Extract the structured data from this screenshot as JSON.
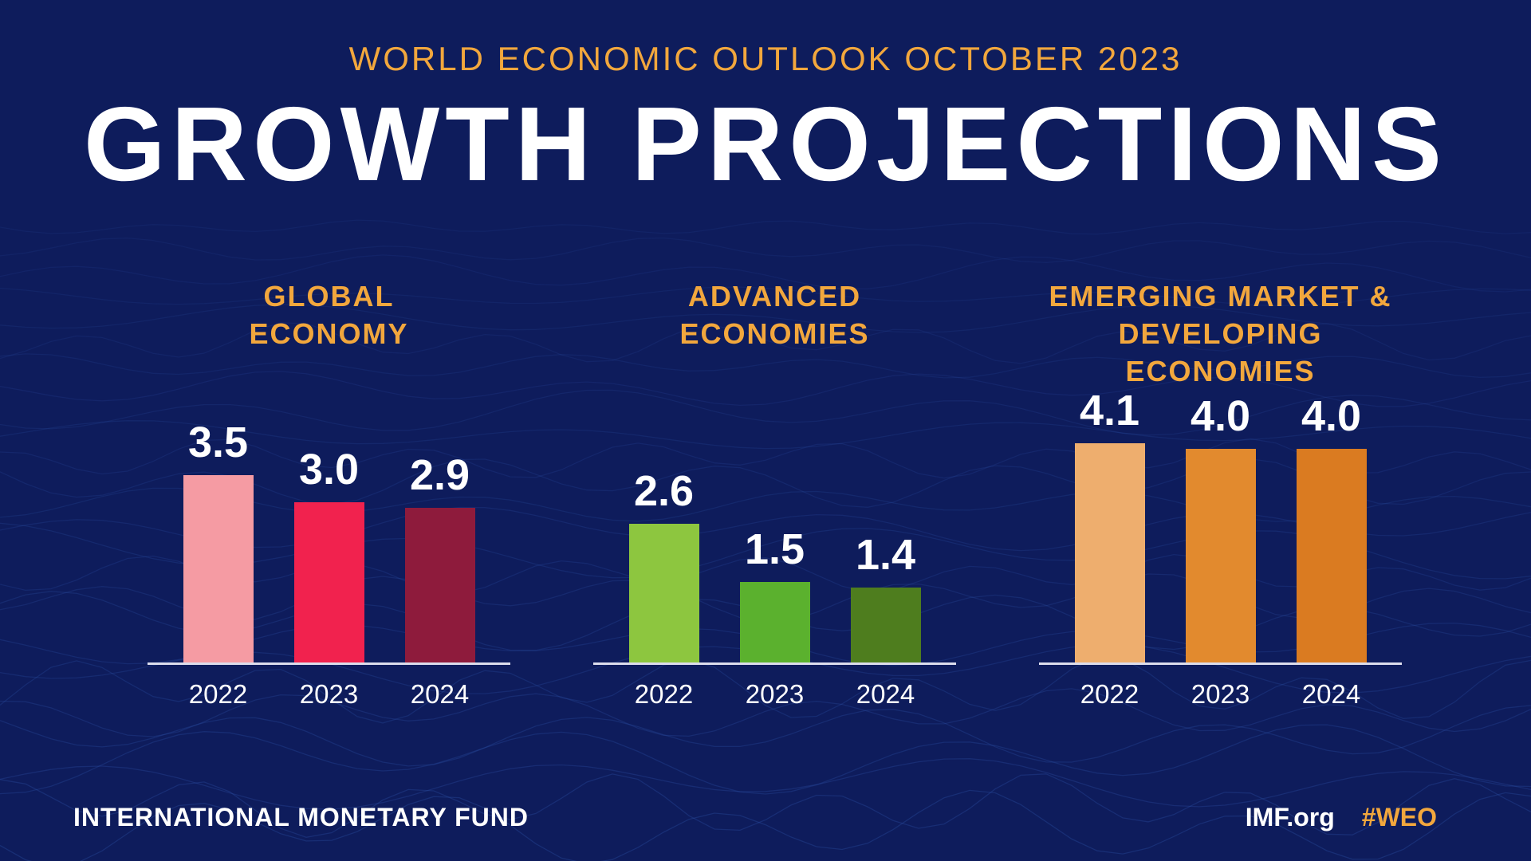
{
  "header": {
    "subtitle": "WORLD ECONOMIC OUTLOOK OCTOBER 2023",
    "title": "GROWTH PROJECTIONS"
  },
  "footer": {
    "left": "INTERNATIONAL MONETARY FUND",
    "site": "IMF.org",
    "hashtag": "#WEO"
  },
  "colors": {
    "background": "#0E1C5C",
    "gold": "#F2A73D",
    "wireframe": "#2C4FA3",
    "axis": "#EEEEF8"
  },
  "chart_data": {
    "type": "bar",
    "title": "GROWTH PROJECTIONS",
    "subtitle": "WORLD ECONOMIC OUTLOOK OCTOBER 2023",
    "categories": [
      "2022",
      "2023",
      "2024"
    ],
    "ylim": [
      0,
      4.5
    ],
    "grid": false,
    "legend_position": "none",
    "groups": [
      {
        "name": "Global Economy",
        "title_lines": [
          "GLOBAL",
          "ECONOMY"
        ],
        "values": [
          3.5,
          3.0,
          2.9
        ],
        "labels": [
          "3.5",
          "3.0",
          "2.9"
        ],
        "bar_colors": [
          "#F59BA3",
          "#F1224E",
          "#8E1B3C"
        ]
      },
      {
        "name": "Advanced Economies",
        "title_lines": [
          "ADVANCED",
          "ECONOMIES"
        ],
        "values": [
          2.6,
          1.5,
          1.4
        ],
        "labels": [
          "2.6",
          "1.5",
          "1.4"
        ],
        "bar_colors": [
          "#8DC63F",
          "#5BB12E",
          "#4E7D1E"
        ]
      },
      {
        "name": "Emerging Market & Developing Economies",
        "title_lines": [
          "EMERGING MARKET &",
          "DEVELOPING ECONOMIES"
        ],
        "values": [
          4.1,
          4.0,
          4.0
        ],
        "labels": [
          "4.1",
          "4.0",
          "4.0"
        ],
        "bar_colors": [
          "#EEAE6E",
          "#E28A2E",
          "#DA7B21"
        ]
      }
    ]
  }
}
